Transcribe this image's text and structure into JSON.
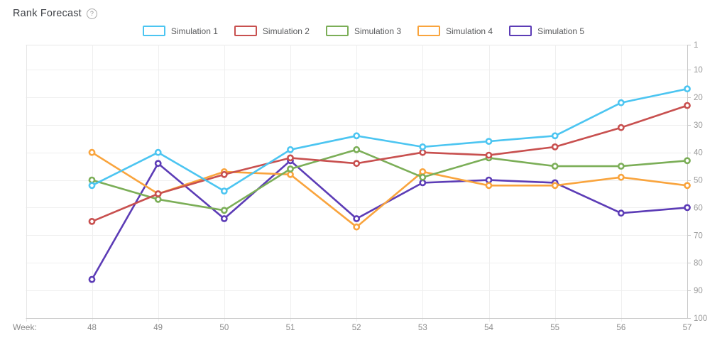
{
  "header": {
    "title": "Rank Forecast",
    "help_icon": "?"
  },
  "chart_data": {
    "type": "line",
    "title": "Rank Forecast",
    "x_label_prefix": "Week:",
    "categories": [
      48,
      49,
      50,
      51,
      52,
      53,
      54,
      55,
      56,
      57
    ],
    "series": [
      {
        "name": "Simulation 1",
        "color": "#4CC5F1",
        "values": [
          52,
          40,
          54,
          39,
          34,
          38,
          36,
          34,
          22,
          17
        ]
      },
      {
        "name": "Simulation 2",
        "color": "#C8504F",
        "values": [
          65,
          55,
          48,
          42,
          44,
          40,
          41,
          38,
          31,
          23
        ]
      },
      {
        "name": "Simulation 3",
        "color": "#7BAE57",
        "values": [
          50,
          57,
          61,
          46,
          39,
          49,
          42,
          45,
          45,
          43
        ]
      },
      {
        "name": "Simulation 4",
        "color": "#F9A43D",
        "values": [
          40,
          55,
          47,
          48,
          67,
          47,
          52,
          52,
          49,
          52
        ]
      },
      {
        "name": "Simulation 5",
        "color": "#5C3CB6",
        "values": [
          86,
          44,
          64,
          43,
          64,
          51,
          50,
          51,
          62,
          60
        ]
      }
    ],
    "y_ticks": [
      1,
      10,
      20,
      30,
      40,
      50,
      60,
      70,
      80,
      90,
      100
    ],
    "y_axis_side": "right",
    "y_inverted": true,
    "ylim": [
      1,
      100
    ],
    "legend_position": "top",
    "grid": true,
    "colors": {
      "grid_line": "#efefef",
      "plot_border": "#e7e7e7",
      "axis_line": "#c9c9c9",
      "tick_label": "#999999",
      "x_label": "#8a8a8a"
    }
  }
}
